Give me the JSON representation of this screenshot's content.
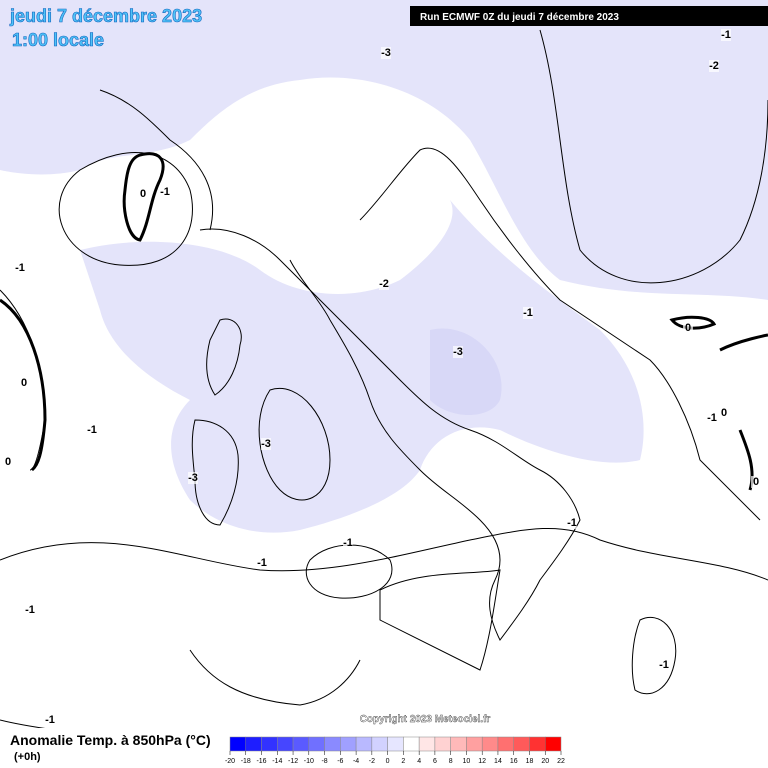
{
  "header": {
    "title": "jeudi 7 décembre 2023",
    "time": "1:00 locale"
  },
  "run": "Run ECMWF 0Z du jeudi 7 décembre 2023",
  "copyright": "Copyright 2023 Meteociel.fr",
  "legend": {
    "title": "Anomalie Temp. à 850hPa (°C)",
    "step": "(+0h)"
  },
  "colorbar": {
    "ticks": [
      -20,
      -18,
      -16,
      -14,
      -12,
      -10,
      -8,
      -6,
      -4,
      -2,
      0,
      2,
      4,
      6,
      8,
      10,
      12,
      14,
      16,
      18,
      20,
      22
    ],
    "colors": [
      "#0000ff",
      "#1e1eff",
      "#3232ff",
      "#4646ff",
      "#5a5aff",
      "#7070ff",
      "#8a8aff",
      "#a0a0ff",
      "#b9b9ff",
      "#d2d2ff",
      "#e6e6ff",
      "#ffffff",
      "#ffe6e6",
      "#ffd2d2",
      "#ffb9b9",
      "#ffa0a0",
      "#ff8a8a",
      "#ff7070",
      "#ff5a5a",
      "#ff3232",
      "#ff0000"
    ]
  },
  "contour_labels": [
    "-1",
    "0",
    "-3",
    "-1",
    "-2",
    "-1",
    "0",
    "-1",
    "0",
    "-2",
    "-1",
    "-3",
    "0",
    "-1",
    "0",
    "0",
    "-3",
    "-3",
    "-1",
    "-1",
    "-1",
    "-1",
    "-1",
    "-1"
  ]
}
